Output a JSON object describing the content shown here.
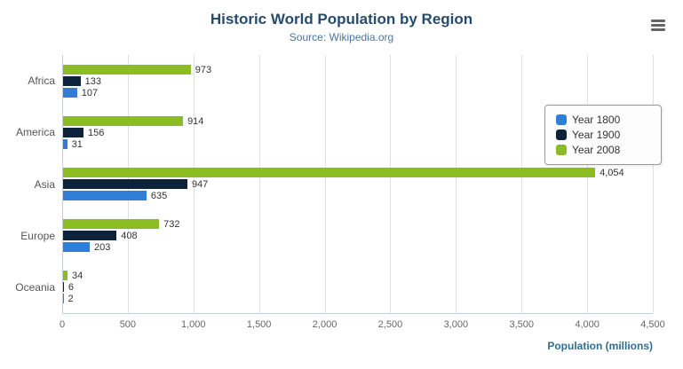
{
  "chart_data": {
    "type": "bar",
    "title": "Historic World Population by Region",
    "subtitle": "Source: Wikipedia.org",
    "categories": [
      "Africa",
      "America",
      "Asia",
      "Europe",
      "Oceania"
    ],
    "series": [
      {
        "name": "Year 1800",
        "color": "#2f7ed8",
        "values": [
          107,
          31,
          635,
          203,
          2
        ],
        "labels": [
          "107",
          "31",
          "635",
          "203",
          "2"
        ]
      },
      {
        "name": "Year 1900",
        "color": "#0d233a",
        "values": [
          133,
          156,
          947,
          408,
          6
        ],
        "labels": [
          "133",
          "156",
          "947",
          "408",
          "6"
        ]
      },
      {
        "name": "Year 2008",
        "color": "#8bbc21",
        "values": [
          973,
          914,
          4054,
          732,
          34
        ],
        "labels": [
          "973",
          "914",
          "4,054",
          "732",
          "34"
        ]
      }
    ],
    "series_render_order_top_to_bottom": [
      "Year 2008",
      "Year 1900",
      "Year 1800"
    ],
    "xlabel": "Population (millions)",
    "xlim": [
      0,
      4500
    ],
    "xticks": [
      0,
      500,
      1000,
      1500,
      2000,
      2500,
      3000,
      3500,
      4000,
      4500
    ],
    "xtick_labels": [
      "0",
      "500",
      "1,000",
      "1,500",
      "2,000",
      "2,500",
      "3,000",
      "3,500",
      "4,000",
      "4,500"
    ],
    "legend": {
      "position": "right",
      "items": [
        "Year 1800",
        "Year 1900",
        "Year 2008"
      ]
    },
    "grid": true
  },
  "colors": {
    "title": "#274b6d",
    "subtitle": "#4d759e",
    "axis_title": "#2f6f8f",
    "tick_label": "#666666",
    "category_label": "#555555",
    "data_label": "#333333",
    "gridline": "#e0e0e0",
    "legend_border": "#999999",
    "background": "#ffffff"
  }
}
